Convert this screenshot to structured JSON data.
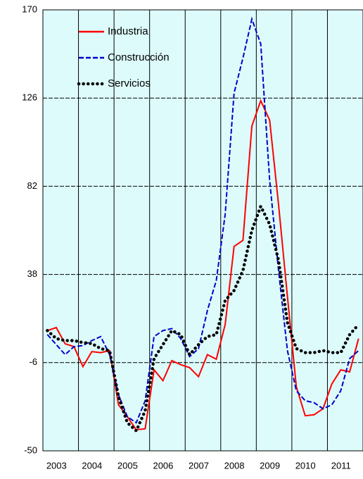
{
  "chart_data": {
    "type": "line",
    "x": [
      2003.125,
      2003.375,
      2003.625,
      2003.875,
      2004.125,
      2004.375,
      2004.625,
      2004.875,
      2005.125,
      2005.375,
      2005.625,
      2005.875,
      2006.125,
      2006.375,
      2006.625,
      2006.875,
      2007.125,
      2007.375,
      2007.625,
      2007.875,
      2008.125,
      2008.375,
      2008.625,
      2008.875,
      2009.125,
      2009.375,
      2009.625,
      2009.875,
      2010.125,
      2010.375,
      2010.625,
      2010.875,
      2011.125,
      2011.375,
      2011.625,
      2011.875
    ],
    "xlim": [
      2003,
      2012
    ],
    "xticks": [
      2003,
      2004,
      2005,
      2006,
      2007,
      2008,
      2009,
      2010,
      2011
    ],
    "ylim": [
      -50,
      170
    ],
    "yticks": [
      -50,
      -6,
      38,
      82,
      126,
      170
    ],
    "grid": true,
    "background": "#ddfbfb",
    "series": [
      {
        "name": "Industria",
        "color": "#ff0000",
        "style": "solid",
        "values": [
          10,
          11.5,
          3.4,
          2,
          -8,
          -0.5,
          -1,
          0,
          -27,
          -33,
          -39.5,
          -39,
          -9.6,
          -15,
          -5,
          -7,
          -8.5,
          -13,
          -2,
          -4.3,
          13,
          52,
          55,
          112,
          124.7,
          115,
          73,
          27,
          -18,
          -32.5,
          -32,
          -29,
          -16.6,
          -9.6,
          -10.6,
          6
        ]
      },
      {
        "name": "Construcción",
        "color": "#0000cc",
        "style": "dashed",
        "values": [
          8,
          3,
          -2,
          2,
          2.5,
          5,
          7,
          -2,
          -22,
          -33,
          -36,
          -25,
          7,
          10,
          11,
          6,
          -3,
          1,
          20,
          35,
          68,
          128.5,
          146,
          165.4,
          153,
          85,
          40,
          0,
          -20,
          -25,
          -26,
          -29,
          -27,
          -20,
          -4,
          0
        ]
      },
      {
        "name": "Servicios",
        "color": "#000000",
        "style": "dotted",
        "values": [
          10,
          6,
          5,
          5,
          4,
          3.5,
          1,
          0,
          -23,
          -36,
          -40,
          -30,
          -4,
          3,
          10,
          8,
          -2,
          3,
          7,
          8,
          25,
          30,
          40,
          60,
          72,
          63,
          45,
          14,
          1,
          -1,
          -1,
          0,
          -1,
          -1,
          8,
          13
        ]
      }
    ]
  }
}
